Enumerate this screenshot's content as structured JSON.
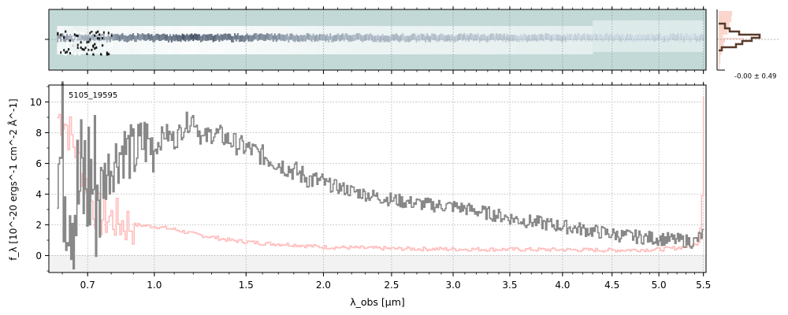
{
  "figure": {
    "object_id": "5105_19595",
    "xlabel": "λ_obs [μm]",
    "ylabel": "f_λ [10^-20 ergs^-1 cm^-2 Å^-1]",
    "profile_annotation": "-0.00 ± 0.49"
  },
  "colors": {
    "flux": "#888888",
    "error": "#ffbdbd",
    "profile_line": "#5a3a2a",
    "profile_fill": "#fbd6cc",
    "image_bg": "#c3d9d8",
    "grid": "#b0b0b0"
  },
  "chart_data": [
    {
      "type": "line",
      "panel": "spectrum",
      "x_scale": "sqrt",
      "xlim": [
        0.55,
        5.53
      ],
      "ylim": [
        -1.1,
        11.1
      ],
      "x_ticks": [
        0.7,
        1.0,
        1.5,
        2.0,
        2.5,
        3.0,
        3.5,
        4.0,
        4.5,
        5.0,
        5.5
      ],
      "x_tick_labels": [
        "0.7",
        "1.0",
        "1.5",
        "2.0",
        "2.5",
        "3.0",
        "3.5",
        "4.0",
        "4.5",
        "5.0",
        "5.5"
      ],
      "y_ticks": [
        0,
        2,
        4,
        6,
        8,
        10
      ],
      "y_tick_labels": [
        "0",
        "2",
        "4",
        "6",
        "8",
        "10"
      ],
      "grid": true,
      "series": [
        {
          "role": "flux",
          "x": [
            0.6,
            0.65,
            0.7,
            0.75,
            0.8,
            0.85,
            0.9,
            0.95,
            1.0,
            1.05,
            1.1,
            1.15,
            1.2,
            1.25,
            1.3,
            1.35,
            1.4,
            1.45,
            1.5,
            1.6,
            1.7,
            1.8,
            1.9,
            2.0,
            2.2,
            2.4,
            2.6,
            2.8,
            3.0,
            3.2,
            3.4,
            3.6,
            3.8,
            4.0,
            4.2,
            4.4,
            4.6,
            4.8,
            5.0,
            5.2,
            5.4,
            5.5
          ],
          "y": [
            6.0,
            3.5,
            5.0,
            4.5,
            6.0,
            7.0,
            6.5,
            7.5,
            7.0,
            8.0,
            7.5,
            8.5,
            9.0,
            7.5,
            8.0,
            7.8,
            7.5,
            7.2,
            7.0,
            6.5,
            6.0,
            5.5,
            5.0,
            4.7,
            4.2,
            3.8,
            3.5,
            3.3,
            3.2,
            2.9,
            2.6,
            2.3,
            2.1,
            1.9,
            1.7,
            1.5,
            1.3,
            1.2,
            1.1,
            1.0,
            0.9,
            1.5
          ]
        },
        {
          "role": "error",
          "x": [
            0.6,
            0.65,
            0.7,
            0.75,
            0.8,
            0.85,
            0.9,
            1.0,
            1.1,
            1.2,
            1.3,
            1.4,
            1.5,
            1.6,
            1.8,
            2.0,
            2.5,
            3.0,
            3.5,
            4.0,
            4.5,
            5.0,
            5.2,
            5.4,
            5.45,
            5.48,
            5.5
          ],
          "y": [
            9.0,
            7.0,
            4.0,
            2.5,
            2.4,
            2.1,
            2.0,
            1.9,
            1.7,
            1.4,
            1.2,
            1.0,
            0.9,
            0.8,
            0.7,
            0.55,
            0.45,
            0.42,
            0.4,
            0.38,
            0.35,
            0.4,
            0.5,
            0.7,
            1.0,
            4.0,
            10.5
          ]
        }
      ]
    },
    {
      "type": "heatmap",
      "panel": "2d-spectrum",
      "x_scale": "sqrt",
      "xlim": [
        0.55,
        5.53
      ],
      "description_note": "rows x wavelength image"
    },
    {
      "type": "line",
      "panel": "profile",
      "annotation": "-0.00 ± 0.49"
    }
  ]
}
